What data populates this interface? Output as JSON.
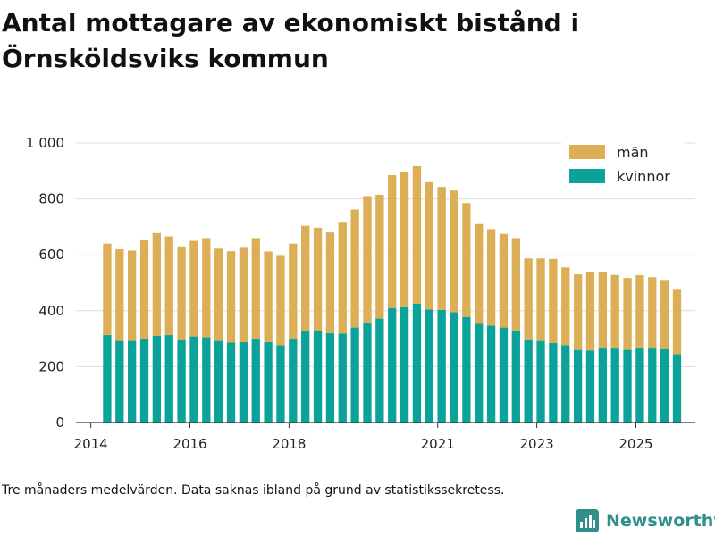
{
  "chart_data": {
    "type": "bar",
    "stacked": true,
    "title": "Antal mottagare av ekonomiskt bistånd i Örnsköldsviks kommun",
    "xlabel": "",
    "ylabel": "",
    "ylim": [
      0,
      1000
    ],
    "yticks": [
      0,
      200,
      400,
      600,
      800,
      1000
    ],
    "ytick_labels": [
      "0",
      "200",
      "400",
      "600",
      "800",
      "1 000"
    ],
    "xlim": [
      2013.7,
      2026.2
    ],
    "xticks": [
      {
        "value": 2014,
        "label": "2014"
      },
      {
        "value": 2016,
        "label": "2016"
      },
      {
        "value": 2018,
        "label": "2018"
      },
      {
        "value": 2021,
        "label": "2021"
      },
      {
        "value": 2023,
        "label": "2023"
      },
      {
        "value": 2025,
        "label": "2025"
      }
    ],
    "x": [
      2014.33,
      2014.58,
      2014.83,
      2015.08,
      2015.33,
      2015.58,
      2015.83,
      2016.08,
      2016.33,
      2016.58,
      2016.83,
      2017.08,
      2017.33,
      2017.58,
      2017.83,
      2018.08,
      2018.33,
      2018.58,
      2018.83,
      2019.08,
      2019.33,
      2019.58,
      2019.83,
      2020.08,
      2020.33,
      2020.58,
      2020.83,
      2021.08,
      2021.33,
      2021.58,
      2021.83,
      2022.08,
      2022.33,
      2022.58,
      2022.83,
      2023.08,
      2023.33,
      2023.58,
      2023.83,
      2024.08,
      2024.33,
      2024.58,
      2024.83,
      2025.08,
      2025.33,
      2025.58,
      2025.83
    ],
    "series": [
      {
        "name": "kvinnor",
        "color": "#0ba29a",
        "values": [
          313,
          292,
          292,
          300,
          310,
          313,
          295,
          308,
          305,
          292,
          286,
          288,
          300,
          288,
          277,
          297,
          326,
          330,
          320,
          318,
          340,
          355,
          372,
          410,
          413,
          425,
          405,
          403,
          395,
          377,
          353,
          347,
          340,
          330,
          295,
          292,
          285,
          277,
          260,
          258,
          265,
          265,
          260,
          265,
          265,
          262,
          245
        ]
      },
      {
        "name": "män",
        "color": "#dcae55",
        "values": [
          327,
          328,
          323,
          352,
          368,
          353,
          335,
          342,
          355,
          330,
          327,
          337,
          360,
          324,
          319,
          343,
          378,
          367,
          360,
          397,
          422,
          455,
          443,
          475,
          483,
          492,
          455,
          440,
          435,
          408,
          357,
          345,
          335,
          330,
          292,
          295,
          300,
          278,
          270,
          282,
          275,
          263,
          257,
          262,
          255,
          248,
          230
        ]
      }
    ],
    "legend": [
      {
        "name": "män",
        "color": "#dcae55"
      },
      {
        "name": "kvinnor",
        "color": "#0ba29a"
      }
    ],
    "legend_position": "top-right",
    "grid": true
  },
  "footer": {
    "note": "Tre månaders medelvärden. Data saknas ibland på grund av statistikssekretess.",
    "brand": "Newsworthy"
  }
}
